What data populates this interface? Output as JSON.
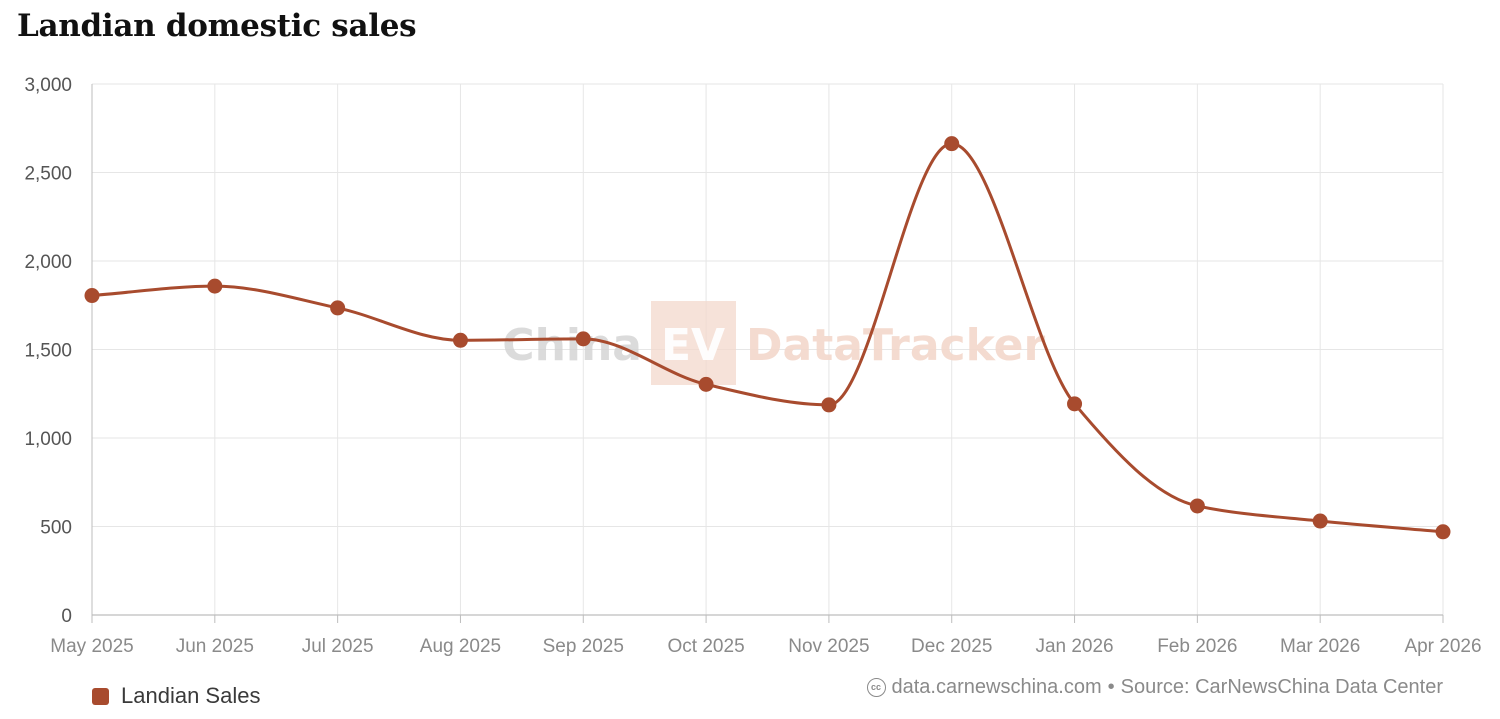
{
  "page": {
    "title": "Landian domestic sales",
    "legend_label": "Landian Sales",
    "footer_site": "data.carnewschina.com",
    "footer_separator": "•",
    "footer_source": "Source: CarNewsChina Data Center",
    "cc_icon": "cc",
    "watermark": {
      "part1": "China",
      "part2": "EV",
      "part3": "DataTracker"
    }
  },
  "colors": {
    "series": "#a84b2e",
    "grid": "#e6e6e6",
    "axis_text": "#555555",
    "watermark_gray": "#d3d3d3",
    "watermark_accent": "#f3d8cc"
  },
  "chart_data": {
    "type": "line",
    "title": "Landian domestic sales",
    "categories": [
      "May 2025",
      "Jun 2025",
      "Jul 2025",
      "Aug 2025",
      "Sep 2025",
      "Oct 2025",
      "Nov 2025",
      "Dec 2025",
      "Jan 2026",
      "Feb 2026",
      "Mar 2026",
      "Apr 2026"
    ],
    "series": [
      {
        "name": "Landian Sales",
        "values": [
          1805,
          1858,
          1735,
          1552,
          1560,
          1303,
          1187,
          2663,
          1193,
          616,
          531,
          470
        ]
      }
    ],
    "ylim": [
      0,
      3000
    ],
    "yticks": [
      0,
      500,
      1000,
      1500,
      2000,
      2500,
      3000
    ],
    "ytick_labels": [
      "0",
      "500",
      "1,000",
      "1,500",
      "2,000",
      "2,500",
      "3,000"
    ],
    "grid": true,
    "smooth": true,
    "legend_position": "bottom-left"
  }
}
